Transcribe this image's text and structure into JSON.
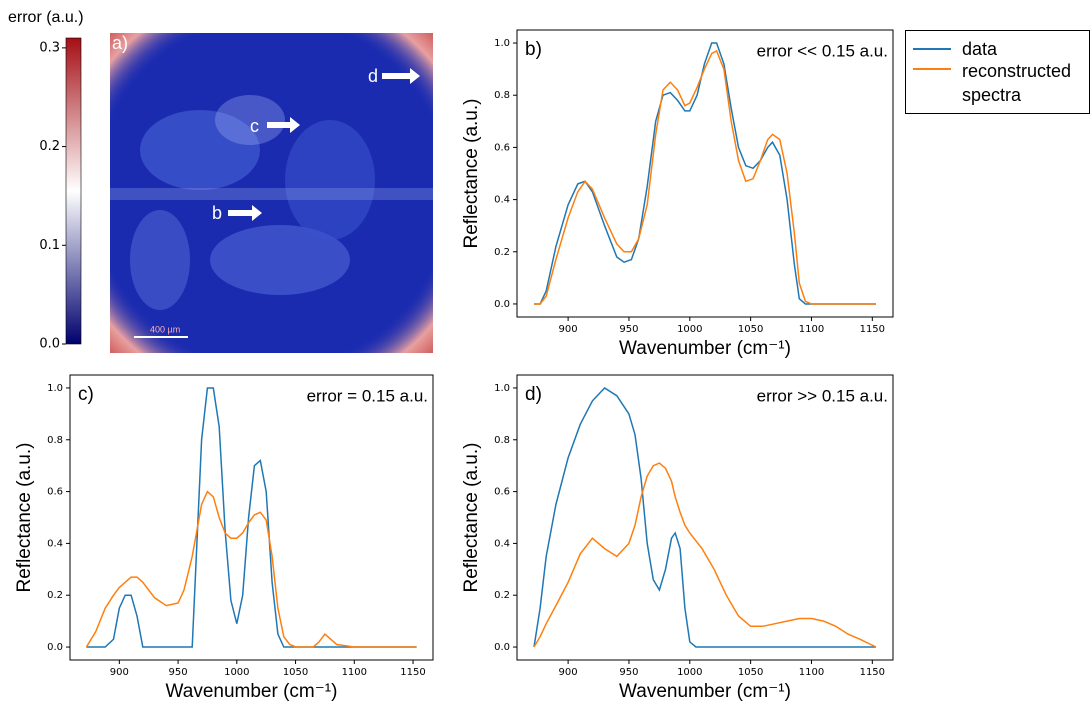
{
  "chart_data": [
    {
      "type": "heatmap",
      "colorbar_label": "error (a.u.)",
      "clim": [
        0,
        0.31
      ],
      "cticks": [
        {
          "value": 0,
          "label": "0.0"
        },
        0.1,
        0.2,
        0.3
      ],
      "colormap": [
        "#00006e",
        "#ffffff",
        "#a50f15"
      ],
      "annotations": [
        "a)",
        "b",
        "c",
        "d",
        "400 µm"
      ]
    },
    {
      "type": "line",
      "panel": "b)",
      "annotation": "error << 0.15 a.u.",
      "xlabel": "Wavenumber (cm⁻¹)",
      "ylabel": "Reflectance (a.u.)",
      "xlim": [
        858,
        1167
      ],
      "ylim": [
        -0.05,
        1.05
      ],
      "xticks": [
        900,
        950,
        1000,
        1050,
        1100,
        1150
      ],
      "yticks": [
        {
          "value": 0,
          "label": "0.0"
        },
        0.2,
        0.4,
        0.6,
        0.8,
        {
          "value": 1,
          "label": "1.0"
        }
      ],
      "x": [
        872,
        877,
        882,
        890,
        900,
        908,
        914,
        920,
        930,
        940,
        946,
        952,
        958,
        965,
        972,
        978,
        984,
        990,
        996,
        1000,
        1006,
        1012,
        1018,
        1022,
        1028,
        1034,
        1040,
        1046,
        1052,
        1058,
        1064,
        1068,
        1074,
        1080,
        1086,
        1090,
        1095,
        1100,
        1120,
        1153
      ],
      "series": [
        {
          "name": "data",
          "color": "#1f77b4",
          "values": [
            0,
            0,
            0.05,
            0.22,
            0.38,
            0.46,
            0.47,
            0.43,
            0.3,
            0.18,
            0.16,
            0.17,
            0.25,
            0.45,
            0.7,
            0.8,
            0.81,
            0.78,
            0.74,
            0.74,
            0.8,
            0.92,
            1.0,
            1.0,
            0.92,
            0.75,
            0.6,
            0.53,
            0.52,
            0.55,
            0.6,
            0.62,
            0.57,
            0.4,
            0.15,
            0.02,
            0,
            0,
            0,
            0
          ]
        },
        {
          "name": "reconstructed spectra",
          "color": "#ff7f0e",
          "values": [
            0,
            0,
            0.03,
            0.17,
            0.33,
            0.43,
            0.47,
            0.44,
            0.33,
            0.23,
            0.2,
            0.2,
            0.25,
            0.38,
            0.65,
            0.82,
            0.85,
            0.82,
            0.76,
            0.77,
            0.83,
            0.9,
            0.96,
            0.97,
            0.9,
            0.7,
            0.55,
            0.47,
            0.48,
            0.55,
            0.63,
            0.65,
            0.63,
            0.5,
            0.27,
            0.08,
            0.01,
            0,
            0,
            0
          ]
        }
      ]
    },
    {
      "type": "line",
      "panel": "c)",
      "annotation": "error = 0.15 a.u.",
      "xlabel": "Wavenumber (cm⁻¹)",
      "ylabel": "Reflectance (a.u.)",
      "xlim": [
        858,
        1167
      ],
      "ylim": [
        -0.05,
        1.05
      ],
      "xticks": [
        900,
        950,
        1000,
        1050,
        1100,
        1150
      ],
      "yticks": [
        {
          "value": 0,
          "label": "0.0"
        },
        0.2,
        0.4,
        0.6,
        0.8,
        {
          "value": 1,
          "label": "1.0"
        }
      ],
      "x": [
        872,
        880,
        888,
        895,
        900,
        905,
        910,
        915,
        920,
        930,
        940,
        950,
        955,
        962,
        966,
        970,
        975,
        980,
        985,
        990,
        995,
        1000,
        1005,
        1010,
        1015,
        1020,
        1025,
        1030,
        1035,
        1040,
        1045,
        1050,
        1055,
        1065,
        1070,
        1075,
        1080,
        1085,
        1100,
        1153
      ],
      "series": [
        {
          "color": "#1f77b4",
          "values": [
            0,
            0,
            0,
            0.03,
            0.15,
            0.2,
            0.2,
            0.12,
            0,
            0,
            0,
            0,
            0,
            0,
            0.4,
            0.8,
            1.0,
            1.0,
            0.85,
            0.45,
            0.18,
            0.09,
            0.2,
            0.5,
            0.7,
            0.72,
            0.6,
            0.25,
            0.05,
            0,
            0,
            0,
            0,
            0,
            0,
            0,
            0,
            0,
            0,
            0
          ]
        },
        {
          "color": "#ff7f0e",
          "values": [
            0,
            0.06,
            0.15,
            0.2,
            0.23,
            0.25,
            0.27,
            0.27,
            0.25,
            0.19,
            0.16,
            0.17,
            0.22,
            0.35,
            0.45,
            0.55,
            0.6,
            0.58,
            0.5,
            0.44,
            0.42,
            0.42,
            0.44,
            0.48,
            0.51,
            0.52,
            0.49,
            0.35,
            0.15,
            0.04,
            0.01,
            0,
            0,
            0,
            0.02,
            0.05,
            0.03,
            0.01,
            0,
            0
          ]
        }
      ]
    },
    {
      "type": "line",
      "panel": "d)",
      "annotation": "error >> 0.15 a.u.",
      "xlabel": "Wavenumber (cm⁻¹)",
      "ylabel": "Reflectance (a.u.)",
      "xlim": [
        858,
        1167
      ],
      "ylim": [
        -0.05,
        1.05
      ],
      "xticks": [
        900,
        950,
        1000,
        1050,
        1100,
        1150
      ],
      "yticks": [
        {
          "value": 0,
          "label": "0.0"
        },
        0.2,
        0.4,
        0.6,
        0.8,
        {
          "value": 1,
          "label": "1.0"
        }
      ],
      "x": [
        872,
        877,
        882,
        890,
        900,
        910,
        920,
        930,
        940,
        950,
        955,
        960,
        965,
        970,
        975,
        980,
        985,
        988,
        992,
        996,
        1000,
        1005,
        1010,
        1020,
        1030,
        1040,
        1050,
        1060,
        1070,
        1080,
        1090,
        1100,
        1110,
        1120,
        1130,
        1140,
        1153
      ],
      "series": [
        {
          "color": "#1f77b4",
          "values": [
            0,
            0.15,
            0.35,
            0.55,
            0.73,
            0.86,
            0.95,
            1.0,
            0.97,
            0.9,
            0.82,
            0.65,
            0.4,
            0.26,
            0.22,
            0.3,
            0.42,
            0.44,
            0.38,
            0.15,
            0.02,
            0,
            0,
            0,
            0,
            0,
            0,
            0,
            0,
            0,
            0,
            0,
            0,
            0,
            0,
            0,
            0
          ]
        },
        {
          "color": "#ff7f0e",
          "values": [
            0,
            0.04,
            0.09,
            0.16,
            0.25,
            0.36,
            0.42,
            0.38,
            0.35,
            0.4,
            0.47,
            0.58,
            0.66,
            0.7,
            0.71,
            0.69,
            0.64,
            0.58,
            0.52,
            0.47,
            0.44,
            0.41,
            0.38,
            0.3,
            0.2,
            0.12,
            0.08,
            0.08,
            0.09,
            0.1,
            0.11,
            0.11,
            0.1,
            0.08,
            0.05,
            0.03,
            0
          ]
        }
      ]
    }
  ]
}
